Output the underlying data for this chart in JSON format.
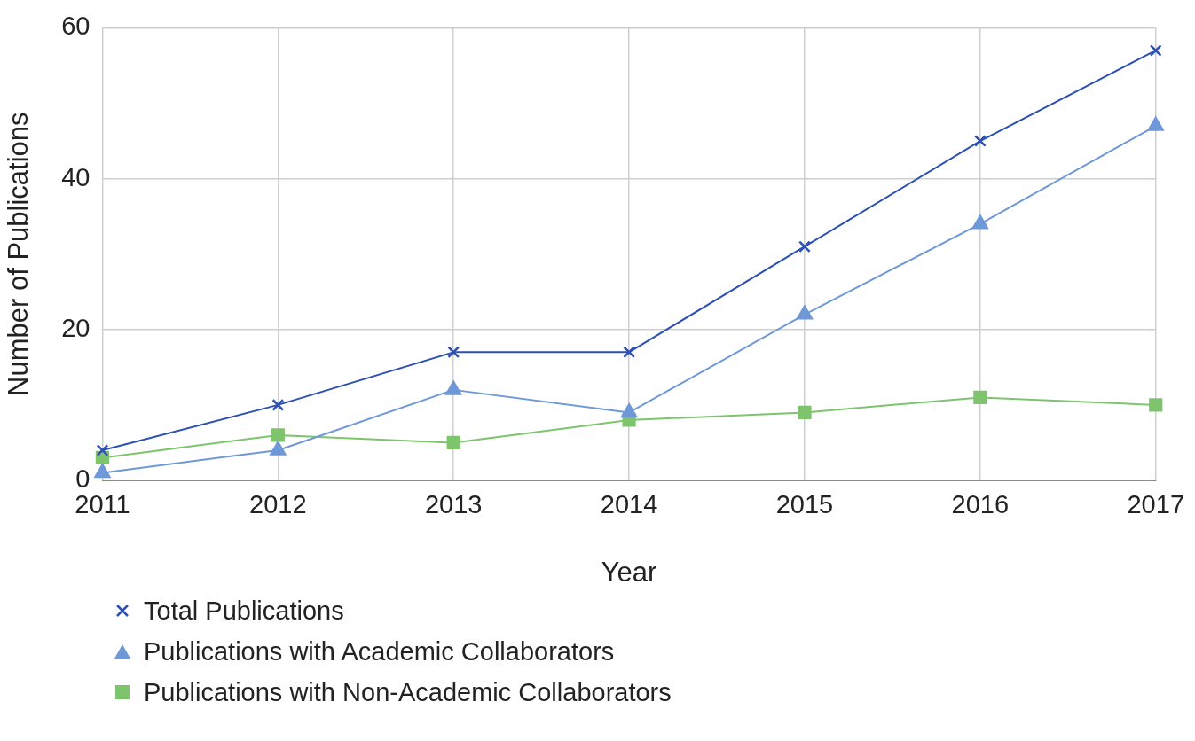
{
  "chart_data": {
    "type": "line",
    "xlabel": "Year",
    "ylabel": "Number of Publications",
    "categories": [
      "2011",
      "2012",
      "2013",
      "2014",
      "2015",
      "2016",
      "2017"
    ],
    "series": [
      {
        "name": "Total Publications",
        "color": "#2c50b4",
        "marker": "cross",
        "values": [
          4,
          10,
          17,
          17,
          31,
          45,
          57
        ]
      },
      {
        "name": "Publications with Academic Collaborators",
        "color": "#6e98d8",
        "marker": "triangle",
        "values": [
          1,
          4,
          12,
          9,
          22,
          34,
          47
        ]
      },
      {
        "name": "Publications with Non-Academic Collaborators",
        "color": "#7ec46c",
        "marker": "square",
        "values": [
          3,
          6,
          5,
          8,
          9,
          11,
          10
        ]
      }
    ],
    "ylim": [
      0,
      60
    ],
    "yticks": [
      0,
      20,
      40,
      60
    ],
    "grid": true,
    "legend": "bottom"
  }
}
